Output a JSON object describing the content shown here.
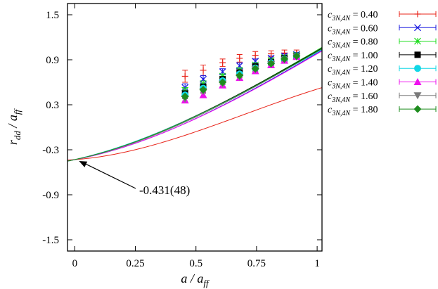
{
  "chart_data": {
    "type": "scatter",
    "title": "",
    "xlabel": {
      "main": "a / a",
      "sub": "ff"
    },
    "ylabel": {
      "main": "r",
      "sub1": "dd",
      "mid": " / a",
      "sub2": "ff"
    },
    "xlim": [
      -0.03,
      1.02
    ],
    "ylim": [
      -1.65,
      1.65
    ],
    "x_ticks": [
      {
        "value": 0,
        "label": "0"
      },
      {
        "value": 0.25,
        "label": "0.25"
      },
      {
        "value": 0.5,
        "label": "0.5"
      },
      {
        "value": 0.75,
        "label": "0.75"
      },
      {
        "value": 1.0,
        "label": "1"
      }
    ],
    "y_ticks": [
      {
        "value": 1.5,
        "label": "1.5"
      },
      {
        "value": 0.9,
        "label": "0.9"
      },
      {
        "value": 0.3,
        "label": "0.3"
      },
      {
        "value": -0.3,
        "label": "-0.3"
      },
      {
        "value": -0.9,
        "label": "-0.9"
      },
      {
        "value": -1.5,
        "label": "-1.5"
      }
    ],
    "grid": false,
    "legend_position": "outside-right",
    "annotation": {
      "text": "-0.431(48)",
      "x": 0,
      "y": -0.431
    },
    "x": [
      0.455,
      0.53,
      0.61,
      0.68,
      0.745,
      0.81,
      0.865,
      0.915
    ],
    "series": [
      {
        "name_main": "c",
        "name_sub": "3N,4N",
        "name_value": " = 0.40",
        "color": "#e8241a",
        "marker": "plus",
        "values": [
          0.68,
          0.76,
          0.86,
          0.92,
          0.96,
          0.98,
          0.99,
          0.99
        ],
        "errors": [
          0.08,
          0.07,
          0.05,
          0.05,
          0.05,
          0.04,
          0.04,
          0.04
        ],
        "fit": [
          -0.431,
          0.23,
          1.35,
          -0.64
        ]
      },
      {
        "name_main": "c",
        "name_sub": "3N,4N",
        "name_value": " = 0.60",
        "color": "#1a1ae0",
        "marker": "x",
        "values": [
          0.53,
          0.64,
          0.74,
          0.82,
          0.88,
          0.92,
          0.95,
          0.97
        ],
        "errors": [
          0.05,
          0.05,
          0.04,
          0.04,
          0.03,
          0.03,
          0.03,
          0.03
        ],
        "fit": [
          -0.431,
          0.6,
          1.17,
          -0.35
        ]
      },
      {
        "name_main": "c",
        "name_sub": "3N,4N",
        "name_value": " = 0.80",
        "color": "#22dd22",
        "marker": "star",
        "values": [
          0.49,
          0.58,
          0.68,
          0.76,
          0.83,
          0.89,
          0.93,
          0.96
        ],
        "errors": [
          0.04,
          0.04,
          0.03,
          0.03,
          0.03,
          0.03,
          0.03,
          0.03
        ],
        "fit": [
          -0.431,
          0.68,
          1.14,
          -0.36
        ]
      },
      {
        "name_main": "c",
        "name_sub": "3N,4N",
        "name_value": " = 1.00",
        "color": "#000000",
        "marker": "square",
        "values": [
          0.45,
          0.54,
          0.64,
          0.73,
          0.81,
          0.87,
          0.92,
          0.95
        ],
        "errors": [
          0.03,
          0.03,
          0.03,
          0.03,
          0.03,
          0.03,
          0.03,
          0.03
        ],
        "fit": [
          -0.431,
          0.72,
          1.07,
          -0.34
        ]
      },
      {
        "name_main": "c",
        "name_sub": "3N,4N",
        "name_value": " = 1.20",
        "color": "#11d7e6",
        "marker": "circle",
        "values": [
          0.43,
          0.52,
          0.62,
          0.71,
          0.79,
          0.86,
          0.91,
          0.95
        ],
        "errors": [
          0.03,
          0.03,
          0.03,
          0.03,
          0.03,
          0.03,
          0.03,
          0.03
        ],
        "fit": [
          -0.431,
          0.74,
          1.0,
          -0.31
        ]
      },
      {
        "name_main": "c",
        "name_sub": "3N,4N",
        "name_value": " = 1.40",
        "color": "#ee11ee",
        "marker": "triangle-up",
        "values": [
          0.36,
          0.43,
          0.56,
          0.66,
          0.75,
          0.83,
          0.89,
          0.94
        ],
        "errors": [
          0.03,
          0.03,
          0.03,
          0.03,
          0.03,
          0.03,
          0.03,
          0.03
        ],
        "fit": [
          -0.431,
          0.62,
          1.1,
          -0.31
        ]
      },
      {
        "name_main": "c",
        "name_sub": "3N,4N",
        "name_value": " = 1.60",
        "color": "#7a7a7a",
        "marker": "triangle-down",
        "values": [
          0.38,
          0.48,
          0.58,
          0.67,
          0.77,
          0.84,
          0.9,
          0.94
        ],
        "errors": [
          0.03,
          0.03,
          0.03,
          0.03,
          0.03,
          0.03,
          0.03,
          0.03
        ],
        "fit": [
          -0.431,
          0.66,
          1.12,
          -0.34
        ]
      },
      {
        "name_main": "c",
        "name_sub": "3N,4N",
        "name_value": " = 1.80",
        "color": "#1e8c1e",
        "marker": "diamond",
        "values": [
          0.41,
          0.5,
          0.6,
          0.69,
          0.78,
          0.85,
          0.91,
          0.95
        ],
        "errors": [
          0.03,
          0.03,
          0.03,
          0.03,
          0.03,
          0.03,
          0.03,
          0.03
        ],
        "fit": [
          -0.431,
          0.7,
          1.1,
          -0.36
        ]
      }
    ]
  }
}
